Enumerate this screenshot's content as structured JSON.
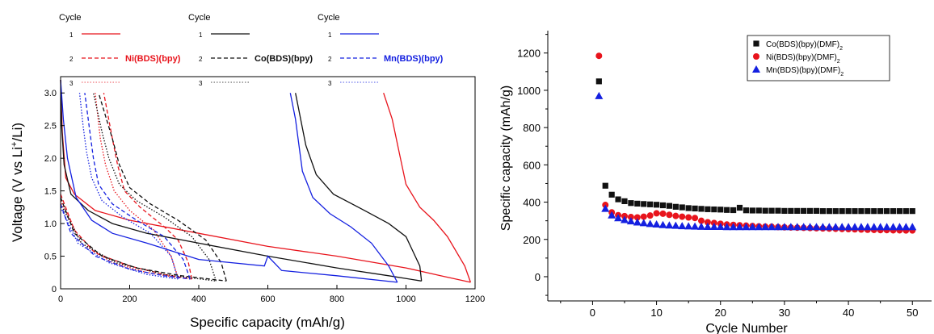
{
  "chart_data": [
    {
      "type": "line",
      "xlabel": "Specific capacity (mAh/g)",
      "ylabel_parts": [
        "Voltage (V vs Li",
        "+",
        "/Li)"
      ],
      "xlim": [
        0,
        1200
      ],
      "ylim": [
        0,
        3.25
      ],
      "xticks": [
        0,
        200,
        400,
        600,
        800,
        1000,
        1200
      ],
      "yticks": [
        0,
        0.5,
        1.0,
        1.5,
        2.0,
        2.5,
        3.0
      ],
      "xtick_labels": [
        "0",
        "200",
        "400",
        "600",
        "800",
        "1000",
        "1200"
      ],
      "ytick_labels": [
        "0",
        "0.5",
        "1.0",
        "1.5",
        "2.0",
        "2.5",
        "3.0"
      ],
      "legend_title": "Cycle",
      "cycle_labels": [
        "1",
        "2",
        "3"
      ],
      "colors": {
        "Ni": "#e8141c",
        "Co": "#111111",
        "Mn": "#1420e0"
      },
      "series": [
        {
          "name": "Ni(BDS)(bpy)",
          "key": "Ni",
          "cycle": 1,
          "style": "solid",
          "points": [
            [
              0,
              3.2
            ],
            [
              5,
              2.4
            ],
            [
              15,
              1.7
            ],
            [
              40,
              1.45
            ],
            [
              100,
              1.2
            ],
            [
              200,
              1.05
            ],
            [
              400,
              0.85
            ],
            [
              600,
              0.65
            ],
            [
              800,
              0.5
            ],
            [
              1000,
              0.32
            ],
            [
              1100,
              0.2
            ],
            [
              1187,
              0.1
            ]
          ]
        },
        {
          "name": "Ni(BDS)(bpy)",
          "key": "Ni",
          "cycle": 1,
          "style": "solid",
          "points": [
            [
              1187,
              0.1
            ],
            [
              1170,
              0.35
            ],
            [
              1120,
              0.8
            ],
            [
              1080,
              1.05
            ],
            [
              1040,
              1.25
            ],
            [
              1000,
              1.6
            ],
            [
              980,
              2.1
            ],
            [
              960,
              2.6
            ],
            [
              935,
              3.0
            ]
          ]
        },
        {
          "name": "Ni(BDS)(bpy)",
          "key": "Ni",
          "cycle": 2,
          "style": "dashed",
          "points": [
            [
              0,
              1.45
            ],
            [
              40,
              0.9
            ],
            [
              100,
              0.55
            ],
            [
              200,
              0.35
            ],
            [
              300,
              0.22
            ],
            [
              380,
              0.15
            ]
          ]
        },
        {
          "name": "Ni(BDS)(bpy)",
          "key": "Ni",
          "cycle": 2,
          "style": "dashed",
          "points": [
            [
              380,
              0.15
            ],
            [
              370,
              0.4
            ],
            [
              340,
              0.75
            ],
            [
              300,
              0.95
            ],
            [
              230,
              1.25
            ],
            [
              185,
              1.5
            ],
            [
              165,
              1.9
            ],
            [
              150,
              2.3
            ],
            [
              125,
              3.0
            ]
          ]
        },
        {
          "name": "Ni(BDS)(bpy)",
          "key": "Ni",
          "cycle": 3,
          "style": "dotted",
          "points": [
            [
              0,
              1.35
            ],
            [
              60,
              0.7
            ],
            [
              150,
              0.4
            ],
            [
              250,
              0.25
            ],
            [
              340,
              0.17
            ]
          ]
        },
        {
          "name": "Ni(BDS)(bpy)",
          "key": "Ni",
          "cycle": 3,
          "style": "dotted",
          "points": [
            [
              340,
              0.17
            ],
            [
              320,
              0.5
            ],
            [
              270,
              0.9
            ],
            [
              200,
              1.2
            ],
            [
              155,
              1.5
            ],
            [
              130,
              1.9
            ],
            [
              115,
              2.3
            ],
            [
              100,
              3.0
            ]
          ]
        },
        {
          "name": "Co(BDS)(bpy)",
          "key": "Co",
          "cycle": 1,
          "style": "solid",
          "points": [
            [
              0,
              3.2
            ],
            [
              3,
              2.5
            ],
            [
              10,
              1.9
            ],
            [
              30,
              1.45
            ],
            [
              80,
              1.2
            ],
            [
              150,
              1.0
            ],
            [
              250,
              0.85
            ],
            [
              400,
              0.7
            ],
            [
              600,
              0.5
            ],
            [
              800,
              0.32
            ],
            [
              950,
              0.2
            ],
            [
              1045,
              0.12
            ]
          ]
        },
        {
          "name": "Co(BDS)(bpy)",
          "key": "Co",
          "cycle": 1,
          "style": "solid",
          "points": [
            [
              1045,
              0.12
            ],
            [
              1040,
              0.35
            ],
            [
              1000,
              0.8
            ],
            [
              950,
              1.0
            ],
            [
              880,
              1.2
            ],
            [
              790,
              1.45
            ],
            [
              740,
              1.75
            ],
            [
              710,
              2.2
            ],
            [
              695,
              2.6
            ],
            [
              680,
              3.0
            ]
          ]
        },
        {
          "name": "Co(BDS)(bpy)",
          "key": "Co",
          "cycle": 2,
          "style": "dashed",
          "points": [
            [
              0,
              1.4
            ],
            [
              40,
              0.85
            ],
            [
              120,
              0.5
            ],
            [
              220,
              0.32
            ],
            [
              350,
              0.2
            ],
            [
              480,
              0.12
            ]
          ]
        },
        {
          "name": "Co(BDS)(bpy)",
          "key": "Co",
          "cycle": 2,
          "style": "dashed",
          "points": [
            [
              480,
              0.12
            ],
            [
              465,
              0.4
            ],
            [
              420,
              0.75
            ],
            [
              340,
              1.05
            ],
            [
              260,
              1.3
            ],
            [
              200,
              1.55
            ],
            [
              170,
              1.9
            ],
            [
              150,
              2.3
            ],
            [
              110,
              3.0
            ]
          ]
        },
        {
          "name": "Co(BDS)(bpy)",
          "key": "Co",
          "cycle": 3,
          "style": "dotted",
          "points": [
            [
              0,
              1.3
            ],
            [
              60,
              0.7
            ],
            [
              160,
              0.4
            ],
            [
              300,
              0.22
            ],
            [
              450,
              0.12
            ]
          ]
        },
        {
          "name": "Co(BDS)(bpy)",
          "key": "Co",
          "cycle": 3,
          "style": "dotted",
          "points": [
            [
              450,
              0.12
            ],
            [
              430,
              0.45
            ],
            [
              380,
              0.8
            ],
            [
              300,
              1.1
            ],
            [
              220,
              1.35
            ],
            [
              170,
              1.6
            ],
            [
              140,
              2.0
            ],
            [
              120,
              2.4
            ],
            [
              95,
              3.0
            ]
          ]
        },
        {
          "name": "Mn(BDS)(bpy)",
          "key": "Mn",
          "cycle": 1,
          "style": "solid",
          "points": [
            [
              0,
              3.2
            ],
            [
              8,
              2.6
            ],
            [
              20,
              2.0
            ],
            [
              45,
              1.4
            ],
            [
              90,
              1.05
            ],
            [
              150,
              0.85
            ],
            [
              250,
              0.7
            ],
            [
              400,
              0.45
            ],
            [
              590,
              0.35
            ],
            [
              600,
              0.5
            ],
            [
              640,
              0.28
            ],
            [
              800,
              0.2
            ],
            [
              975,
              0.1
            ]
          ]
        },
        {
          "name": "Mn(BDS)(bpy)",
          "key": "Mn",
          "cycle": 1,
          "style": "solid",
          "points": [
            [
              975,
              0.1
            ],
            [
              950,
              0.35
            ],
            [
              900,
              0.7
            ],
            [
              840,
              0.95
            ],
            [
              780,
              1.15
            ],
            [
              730,
              1.4
            ],
            [
              700,
              1.8
            ],
            [
              690,
              2.2
            ],
            [
              680,
              2.6
            ],
            [
              665,
              3.0
            ]
          ]
        },
        {
          "name": "Mn(BDS)(bpy)",
          "key": "Mn",
          "cycle": 2,
          "style": "dashed",
          "points": [
            [
              0,
              1.3
            ],
            [
              30,
              0.85
            ],
            [
              100,
              0.5
            ],
            [
              200,
              0.3
            ],
            [
              300,
              0.2
            ],
            [
              375,
              0.15
            ]
          ]
        },
        {
          "name": "Mn(BDS)(bpy)",
          "key": "Mn",
          "cycle": 2,
          "style": "dashed",
          "points": [
            [
              375,
              0.15
            ],
            [
              355,
              0.45
            ],
            [
              300,
              0.8
            ],
            [
              220,
              1.05
            ],
            [
              150,
              1.3
            ],
            [
              110,
              1.6
            ],
            [
              95,
              2.0
            ],
            [
              85,
              2.4
            ],
            [
              70,
              3.0
            ]
          ]
        },
        {
          "name": "Mn(BDS)(bpy)",
          "key": "Mn",
          "cycle": 3,
          "style": "dotted",
          "points": [
            [
              0,
              1.25
            ],
            [
              50,
              0.7
            ],
            [
              140,
              0.4
            ],
            [
              250,
              0.22
            ],
            [
              340,
              0.15
            ]
          ]
        },
        {
          "name": "Mn(BDS)(bpy)",
          "key": "Mn",
          "cycle": 3,
          "style": "dotted",
          "points": [
            [
              340,
              0.15
            ],
            [
              320,
              0.5
            ],
            [
              260,
              0.85
            ],
            [
              180,
              1.1
            ],
            [
              120,
              1.35
            ],
            [
              90,
              1.7
            ],
            [
              75,
              2.1
            ],
            [
              65,
              2.5
            ],
            [
              55,
              3.0
            ]
          ]
        }
      ],
      "legend_groups": [
        {
          "key": "Ni",
          "name": "Ni(BDS)(bpy)"
        },
        {
          "key": "Co",
          "name": "Co(BDS)(bpy)"
        },
        {
          "key": "Mn",
          "name": "Mn(BDS)(bpy)"
        }
      ]
    },
    {
      "type": "scatter",
      "xlabel": "Cycle Number",
      "ylabel": "Specific capacity (mAh/g)",
      "xlim": [
        -7,
        53
      ],
      "ylim": [
        -130,
        1320
      ],
      "xticks": [
        0,
        10,
        20,
        30,
        40,
        50
      ],
      "yticks": [
        0,
        200,
        400,
        600,
        800,
        1000,
        1200
      ],
      "xtick_labels": [
        "0",
        "10",
        "20",
        "30",
        "40",
        "50"
      ],
      "ytick_labels": [
        "0",
        "200",
        "400",
        "600",
        "800",
        "1000",
        "1200"
      ],
      "legend_position": "top-right",
      "x": [
        1,
        2,
        3,
        4,
        5,
        6,
        7,
        8,
        9,
        10,
        11,
        12,
        13,
        14,
        15,
        16,
        17,
        18,
        19,
        20,
        21,
        22,
        23,
        24,
        25,
        26,
        27,
        28,
        29,
        30,
        31,
        32,
        33,
        34,
        35,
        36,
        37,
        38,
        39,
        40,
        41,
        42,
        43,
        44,
        45,
        46,
        47,
        48,
        49,
        50
      ],
      "series": [
        {
          "name": "Co(BDS)(bpy)(DMF)",
          "name_sub": "2",
          "key": "Co",
          "marker": "square",
          "values": [
            1048,
            488,
            440,
            415,
            405,
            395,
            392,
            390,
            388,
            386,
            383,
            380,
            375,
            372,
            368,
            366,
            364,
            362,
            361,
            360,
            358,
            357,
            370,
            356,
            355,
            355,
            354,
            354,
            354,
            353,
            353,
            353,
            353,
            353,
            353,
            352,
            352,
            352,
            352,
            352,
            352,
            352,
            352,
            352,
            352,
            352,
            352,
            352,
            352,
            352
          ]
        },
        {
          "name": "Ni(BDS)(bpy)(DMF)",
          "name_sub": "2",
          "key": "Ni",
          "marker": "circle",
          "values": [
            1185,
            385,
            345,
            330,
            325,
            320,
            318,
            322,
            328,
            340,
            338,
            332,
            326,
            322,
            318,
            315,
            300,
            292,
            288,
            284,
            280,
            278,
            276,
            274,
            272,
            270,
            269,
            268,
            266,
            265,
            264,
            263,
            262,
            261,
            260,
            259,
            258,
            257,
            256,
            255,
            254,
            253,
            252,
            251,
            250,
            250,
            249,
            249,
            248,
            248
          ]
        },
        {
          "name": "Mn(BDS)(bpy)(DMF)",
          "name_sub": "2",
          "key": "Mn",
          "marker": "triangle",
          "values": [
            970,
            365,
            330,
            315,
            305,
            298,
            292,
            288,
            284,
            281,
            278,
            276,
            274,
            272,
            271,
            270,
            269,
            268,
            268,
            268,
            267,
            267,
            267,
            267,
            267,
            267,
            267,
            267,
            267,
            267,
            267,
            267,
            267,
            267,
            267,
            267,
            267,
            267,
            267,
            267,
            267,
            267,
            267,
            267,
            267,
            267,
            267,
            267,
            267,
            267
          ]
        }
      ]
    }
  ]
}
